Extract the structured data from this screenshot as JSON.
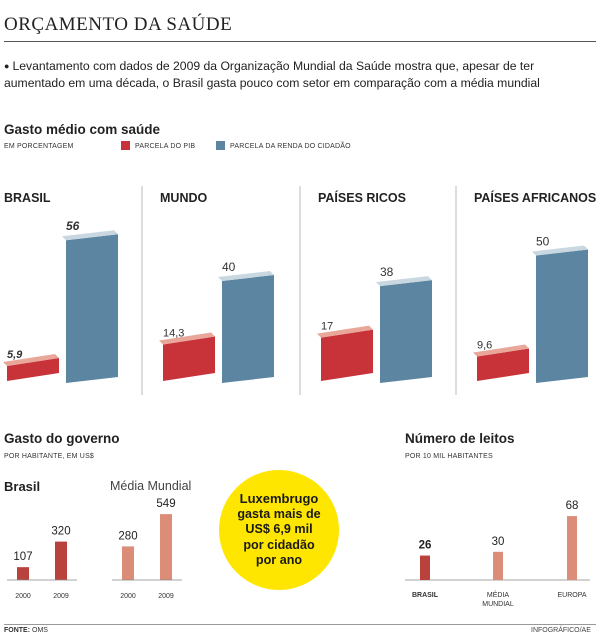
{
  "title": "ORÇAMENTO DA SAÚDE",
  "intro": "Levantamento com dados de 2009 da Organização Mundial da Saúde mostra que, apesar de ter aumentado em uma década, o Brasil gasta pouco com setor em comparação com a média mundial",
  "colors": {
    "red": "#c8333a",
    "red_top": "#e9a79a",
    "blue": "#5b85a1",
    "blue_top": "#c9d7e0",
    "salmon": "#dc8d78",
    "dark_red": "#b9423c",
    "yellow": "#ffe600"
  },
  "section1": {
    "title": "Gasto médio com saúde",
    "subtitle": "EM PORCENTAGEM",
    "legend": [
      "PARCELA DO PIB",
      "PARCELA DA RENDA DO CIDADÃO"
    ]
  },
  "section2": {
    "title": "Gasto do governo",
    "subtitle": "POR HABITANTE, EM US$",
    "group_brasil": "Brasil",
    "group_mundo": "Média Mundial"
  },
  "section3": {
    "title": "Número de leitos",
    "subtitle": "POR 10 MIL HABITANTES"
  },
  "luxembourg": {
    "line1": "Luxembrugo",
    "line2": "gasta mais de",
    "line3": "US$ 6,9 mil",
    "line4": "por cidadão",
    "line5": "por ano"
  },
  "chart_data": [
    {
      "type": "bar",
      "title": "Gasto médio com saúde",
      "ylabel": "EM PORCENTAGEM",
      "categories": [
        "BRASIL",
        "MUNDO",
        "PAÍSES RICOS",
        "PAÍSES AFRICANOS"
      ],
      "series": [
        {
          "name": "PARCELA DO PIB",
          "values": [
            5.9,
            14.3,
            17,
            9.6
          ],
          "labels": [
            "5,9",
            "14,3",
            "17",
            "9,6"
          ]
        },
        {
          "name": "PARCELA DA RENDA DO CIDADÃO",
          "values": [
            56,
            40,
            38,
            50
          ],
          "labels": [
            "56",
            "40",
            "38",
            "50"
          ]
        }
      ]
    },
    {
      "type": "bar",
      "title": "Gasto do governo",
      "ylabel": "POR HABITANTE, EM US$",
      "groups": [
        {
          "name": "Brasil",
          "categories": [
            "2000",
            "2009"
          ],
          "values": [
            107,
            320
          ]
        },
        {
          "name": "Média Mundial",
          "categories": [
            "2000",
            "2009"
          ],
          "values": [
            280,
            549
          ]
        }
      ]
    },
    {
      "type": "bar",
      "title": "Número de leitos",
      "ylabel": "POR 10 MIL HABITANTES",
      "categories": [
        "BRASIL",
        "MÉDIA MUNDIAL",
        "EUROPA"
      ],
      "category_lines": [
        [
          "BRASIL"
        ],
        [
          "MÉDIA",
          "MUNDIAL"
        ],
        [
          "EUROPA"
        ]
      ],
      "values": [
        26,
        30,
        68
      ]
    }
  ],
  "footer": {
    "source_label": "FONTE:",
    "source": "OMS",
    "credit": "INFOGRÁFICO/AE"
  }
}
